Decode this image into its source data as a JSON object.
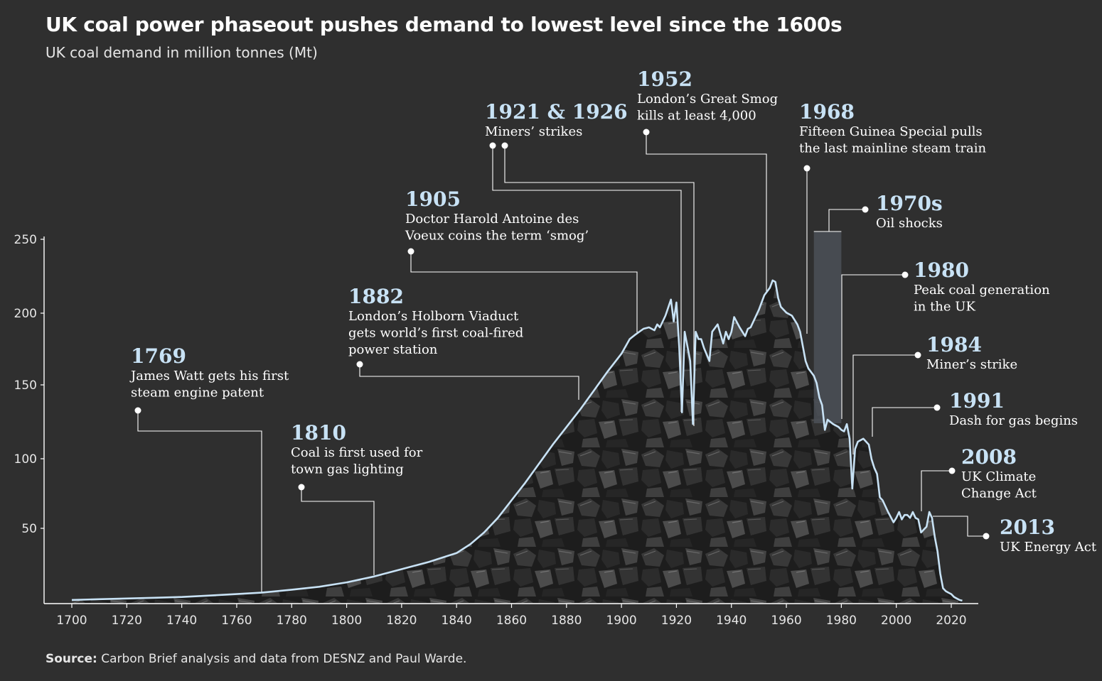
{
  "title": "UK coal power phaseout pushes demand to lowest level since the 1600s",
  "subtitle": "UK coal demand in million tonnes (Mt)",
  "source_label": "Source:",
  "source_text": " Carbon Brief analysis and data from DESNZ and Paul Warde.",
  "colors": {
    "background": "#2f2f2f",
    "line": "#c8e2f5",
    "annotation_year": "#c8e2f5",
    "annotation_text": "#ffffff",
    "coal_dark": "#161616",
    "coal_mid": "#3a3a3a",
    "coal_light": "#5a5a5a",
    "band": "#4a4f55"
  },
  "chart_data": {
    "type": "area",
    "title": "UK coal power phaseout pushes demand to lowest level since the 1600s",
    "ylabel": "UK coal demand in million tonnes (Mt)",
    "xlabel": "",
    "xlim": [
      1690,
      2030
    ],
    "ylim": [
      0,
      250
    ],
    "xticks": [
      "1700",
      "1720",
      "1740",
      "1760",
      "1780",
      "1800",
      "1820",
      "1840",
      "1860",
      "1880",
      "1900",
      "1920",
      "1940",
      "1960",
      "1980",
      "2000",
      "2020"
    ],
    "yticks": [
      "50",
      "100",
      "150",
      "200",
      "250"
    ],
    "x": [
      1700,
      1710,
      1720,
      1730,
      1740,
      1750,
      1760,
      1769,
      1780,
      1790,
      1800,
      1810,
      1820,
      1830,
      1840,
      1845,
      1850,
      1855,
      1860,
      1865,
      1870,
      1875,
      1880,
      1885,
      1890,
      1895,
      1900,
      1903,
      1905,
      1908,
      1910,
      1912,
      1913,
      1914,
      1916,
      1918,
      1919,
      1920,
      1921,
      1922,
      1923,
      1924,
      1925,
      1926,
      1927,
      1928,
      1929,
      1930,
      1932,
      1933,
      1935,
      1937,
      1938,
      1939,
      1940,
      1941,
      1943,
      1945,
      1946,
      1947,
      1950,
      1952,
      1954,
      1955,
      1956,
      1957,
      1958,
      1960,
      1962,
      1964,
      1965,
      1967,
      1968,
      1970,
      1971,
      1972,
      1973,
      1974,
      1975,
      1977,
      1979,
      1980,
      1981,
      1982,
      1983,
      1984,
      1985,
      1986,
      1988,
      1990,
      1991,
      1992,
      1993,
      1994,
      1995,
      1997,
      1999,
      2000,
      2001,
      2002,
      2003,
      2004,
      2005,
      2006,
      2007,
      2008,
      2009,
      2010,
      2011,
      2012,
      2013,
      2014,
      2015,
      2016,
      2017,
      2018,
      2019,
      2020,
      2021,
      2022,
      2023,
      2024
    ],
    "values": [
      2,
      2.5,
      3,
      3.5,
      4,
      5,
      6,
      7,
      9,
      11,
      14,
      18,
      23,
      28,
      34,
      40,
      48,
      58,
      70,
      82,
      95,
      108,
      120,
      132,
      145,
      158,
      170,
      180,
      183,
      187,
      188,
      186,
      190,
      188,
      196,
      207,
      192,
      205,
      175,
      130,
      185,
      175,
      165,
      122,
      185,
      180,
      180,
      174,
      165,
      185,
      190,
      177,
      185,
      180,
      185,
      195,
      188,
      182,
      187,
      188,
      200,
      210,
      215,
      220,
      219,
      208,
      202,
      198,
      196,
      190,
      185,
      165,
      160,
      155,
      150,
      140,
      135,
      118,
      125,
      122,
      120,
      118,
      117,
      122,
      112,
      78,
      105,
      110,
      112,
      108,
      98,
      92,
      88,
      72,
      70,
      62,
      55,
      58,
      62,
      57,
      60,
      60,
      58,
      62,
      58,
      57,
      48,
      50,
      52,
      62,
      58,
      45,
      35,
      20,
      10,
      8,
      7,
      6,
      4,
      3,
      2,
      1.5
    ],
    "series": [
      {
        "name": "UK coal demand",
        "values": "see values"
      }
    ],
    "highlight_band": {
      "from": 1970,
      "to": 1980,
      "label": "1970s"
    },
    "annotations": [
      {
        "year": "1769",
        "text": [
          "James Watt gets his first",
          "steam engine patent"
        ],
        "x": 1769
      },
      {
        "year": "1810",
        "text": [
          "Coal is first used for",
          "town gas lighting"
        ],
        "x": 1810
      },
      {
        "year": "1882",
        "text": [
          "London’s Holborn Viaduct",
          "gets world’s first coal-fired",
          "power station"
        ],
        "x": 1882
      },
      {
        "year": "1905",
        "text": [
          "Doctor Harold Antoine des",
          "Voeux coins the term ‘smog’"
        ],
        "x": 1905
      },
      {
        "year": "1921 & 1926",
        "text": [
          "Miners’ strikes"
        ],
        "x": 1921
      },
      {
        "year": "1952",
        "text": [
          "London’s Great Smog",
          "kills at least 4,000"
        ],
        "x": 1952
      },
      {
        "year": "1968",
        "text": [
          "Fifteen Guinea Special pulls",
          "the last mainline steam train"
        ],
        "x": 1968
      },
      {
        "year": "1970s",
        "text": [
          "Oil shocks"
        ],
        "x": 1975
      },
      {
        "year": "1980",
        "text": [
          "Peak coal generation",
          "in the UK"
        ],
        "x": 1980
      },
      {
        "year": "1984",
        "text": [
          "Miner’s strike"
        ],
        "x": 1984
      },
      {
        "year": "1991",
        "text": [
          "Dash for gas begins"
        ],
        "x": 1991
      },
      {
        "year": "2008",
        "text": [
          "UK Climate",
          "Change Act"
        ],
        "x": 2008
      },
      {
        "year": "2013",
        "text": [
          "UK Energy Act"
        ],
        "x": 2013
      }
    ]
  }
}
